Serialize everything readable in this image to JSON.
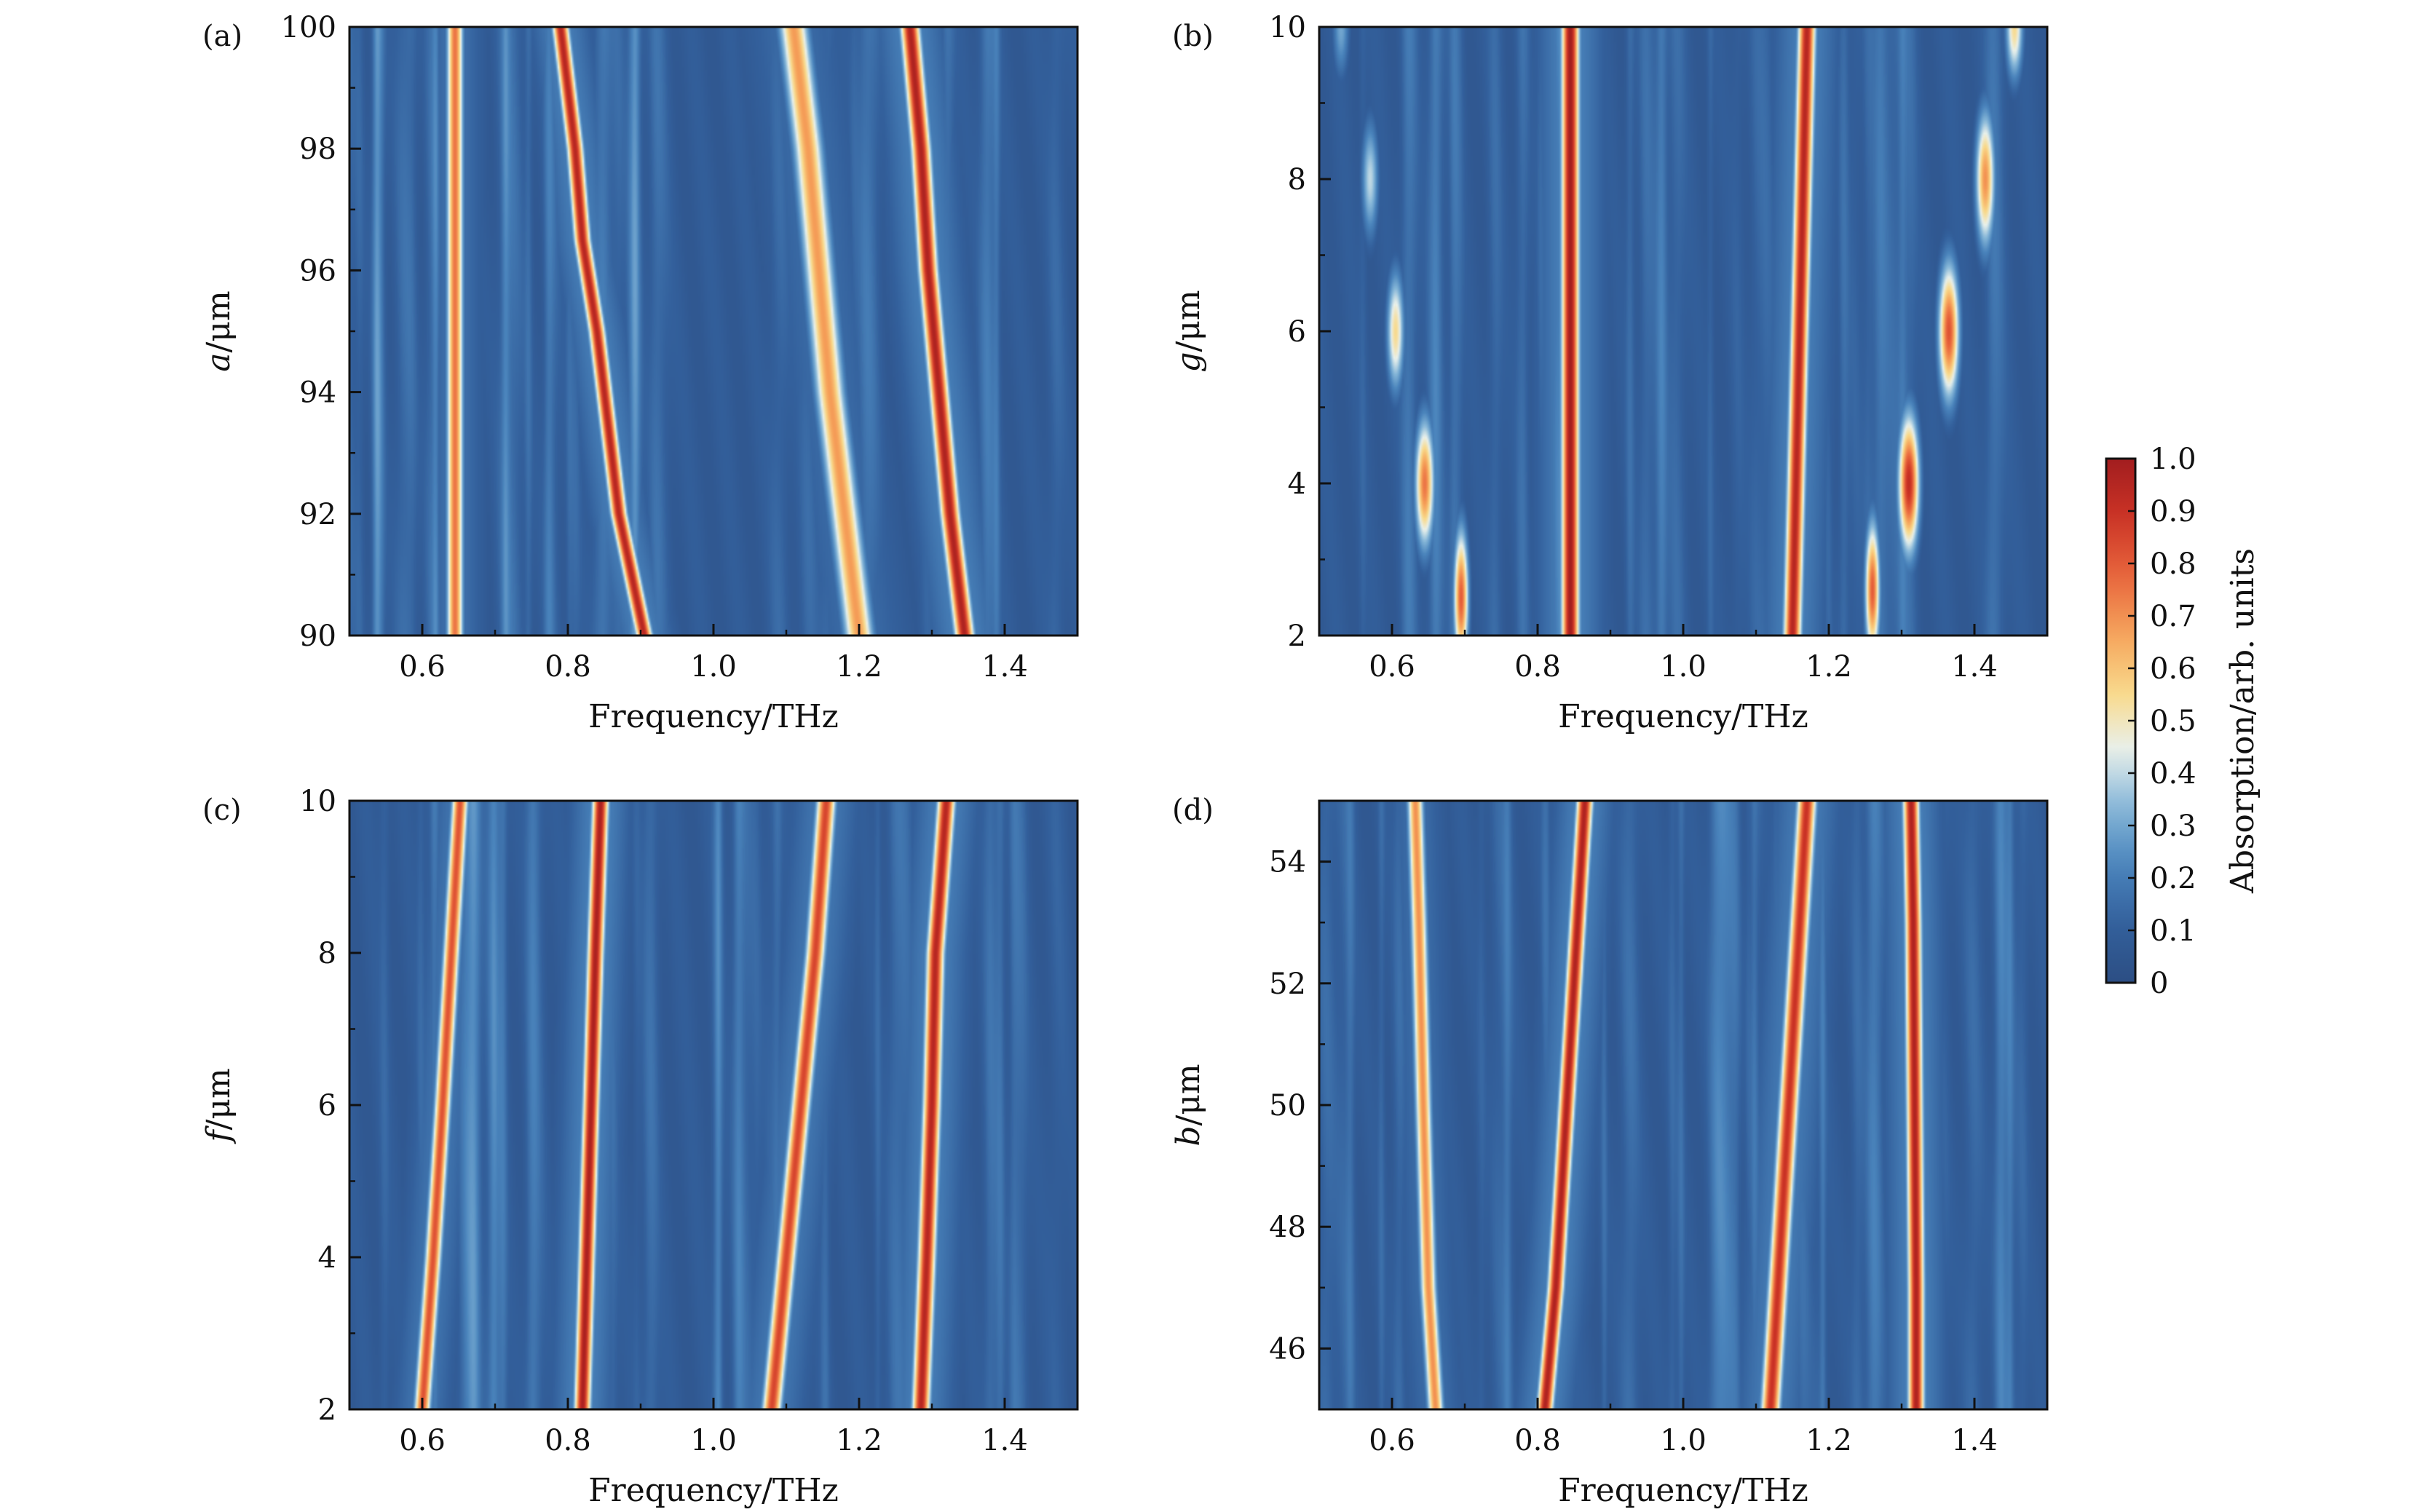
{
  "colors": {
    "colormap": [
      "#2c4e84",
      "#33609c",
      "#4a84bc",
      "#85b6d8",
      "#e9f1ec",
      "#f9d98a",
      "#f6a35b",
      "#e8653d",
      "#cc3426",
      "#a21d1f"
    ],
    "axis": "#111111"
  },
  "colorbar": {
    "label": "Absorption/arb. units",
    "ticks": [
      "0",
      "0.1",
      "0.2",
      "0.3",
      "0.4",
      "0.5",
      "0.6",
      "0.7",
      "0.8",
      "0.9",
      "1.0"
    ],
    "range": [
      0,
      1
    ]
  },
  "chart_data": [
    {
      "type": "heatmap",
      "panel_label": "(a)",
      "xlabel": "Frequency/THz",
      "ylabel_var": "a",
      "ylabel_unit": "/μm",
      "xlim": [
        0.5,
        1.5
      ],
      "ylim": [
        90,
        100
      ],
      "xticks": [
        0.6,
        0.8,
        1.0,
        1.2,
        1.4
      ],
      "xtick_labels": [
        "0.6",
        "0.8",
        "1.0",
        "1.2",
        "1.4"
      ],
      "yticks": [
        90,
        92,
        94,
        96,
        98,
        100
      ],
      "ytick_labels": [
        "90",
        "92",
        "94",
        "96",
        "98",
        "100"
      ],
      "series": [
        {
          "points": [
            [
              0.645,
              90
            ],
            [
              0.645,
              92
            ],
            [
              0.645,
              94
            ],
            [
              0.645,
              96
            ],
            [
              0.645,
              98
            ],
            [
              0.645,
              100
            ]
          ],
          "peak": 0.75,
          "width": 0.011
        },
        {
          "points": [
            [
              0.905,
              90
            ],
            [
              0.87,
              92
            ],
            [
              0.855,
              93.5
            ],
            [
              0.84,
              95
            ],
            [
              0.82,
              96.5
            ],
            [
              0.81,
              98
            ],
            [
              0.79,
              100
            ]
          ],
          "peak": 0.95,
          "width": 0.011
        },
        {
          "points": [
            [
              1.2,
              90
            ],
            [
              1.18,
              92
            ],
            [
              1.16,
              94
            ],
            [
              1.145,
              96
            ],
            [
              1.13,
              98
            ],
            [
              1.11,
              100
            ]
          ],
          "peak": 0.68,
          "width": 0.02
        },
        {
          "points": [
            [
              1.345,
              90
            ],
            [
              1.325,
              92
            ],
            [
              1.31,
              94
            ],
            [
              1.295,
              96
            ],
            [
              1.285,
              98
            ],
            [
              1.27,
              100
            ]
          ],
          "peak": 0.97,
          "width": 0.013
        }
      ]
    },
    {
      "type": "heatmap",
      "panel_label": "(b)",
      "xlabel": "Frequency/THz",
      "ylabel_var": "g",
      "ylabel_unit": "/μm",
      "xlim": [
        0.5,
        1.5
      ],
      "ylim": [
        2,
        10
      ],
      "xticks": [
        0.6,
        0.8,
        1.0,
        1.2,
        1.4
      ],
      "xtick_labels": [
        "0.6",
        "0.8",
        "1.0",
        "1.2",
        "1.4"
      ],
      "yticks": [
        2,
        4,
        6,
        8,
        10
      ],
      "ytick_labels": [
        "2",
        "4",
        "6",
        "8",
        "10"
      ],
      "series": [
        {
          "points": [
            [
              0.845,
              2
            ],
            [
              0.845,
              4
            ],
            [
              0.845,
              6
            ],
            [
              0.845,
              8
            ],
            [
              0.845,
              10
            ]
          ],
          "peak": 1.0,
          "width": 0.012
        },
        {
          "points": [
            [
              1.15,
              2
            ],
            [
              1.155,
              4
            ],
            [
              1.16,
              6
            ],
            [
              1.165,
              8
            ],
            [
              1.17,
              10
            ]
          ],
          "peak": 0.95,
          "width": 0.012
        }
      ],
      "spots": [
        {
          "x": 0.695,
          "y": 2.5,
          "value": 0.8,
          "sx": 0.01,
          "sy": 0.9
        },
        {
          "x": 0.645,
          "y": 4.0,
          "value": 0.75,
          "sx": 0.013,
          "sy": 0.85
        },
        {
          "x": 0.605,
          "y": 6.0,
          "value": 0.55,
          "sx": 0.012,
          "sy": 0.8
        },
        {
          "x": 0.57,
          "y": 8.0,
          "value": 0.4,
          "sx": 0.012,
          "sy": 0.8
        },
        {
          "x": 0.53,
          "y": 10.0,
          "value": 0.3,
          "sx": 0.012,
          "sy": 0.7
        },
        {
          "x": 1.26,
          "y": 2.6,
          "value": 0.8,
          "sx": 0.01,
          "sy": 0.9
        },
        {
          "x": 1.31,
          "y": 4.0,
          "value": 0.92,
          "sx": 0.014,
          "sy": 0.9
        },
        {
          "x": 1.365,
          "y": 6.0,
          "value": 0.82,
          "sx": 0.014,
          "sy": 0.9
        },
        {
          "x": 1.415,
          "y": 8.0,
          "value": 0.7,
          "sx": 0.013,
          "sy": 0.9
        },
        {
          "x": 1.455,
          "y": 10.0,
          "value": 0.55,
          "sx": 0.012,
          "sy": 0.7
        }
      ]
    },
    {
      "type": "heatmap",
      "panel_label": "(c)",
      "xlabel": "Frequency/THz",
      "ylabel_var": "f",
      "ylabel_unit": "/μm",
      "xlim": [
        0.5,
        1.5
      ],
      "ylim": [
        2,
        10
      ],
      "xticks": [
        0.6,
        0.8,
        1.0,
        1.2,
        1.4
      ],
      "xtick_labels": [
        "0.6",
        "0.8",
        "1.0",
        "1.2",
        "1.4"
      ],
      "yticks": [
        2,
        4,
        6,
        8,
        10
      ],
      "ytick_labels": [
        "2",
        "4",
        "6",
        "8",
        "10"
      ],
      "series": [
        {
          "points": [
            [
              0.6,
              2
            ],
            [
              0.615,
              4
            ],
            [
              0.628,
              6
            ],
            [
              0.64,
              8
            ],
            [
              0.652,
              10
            ]
          ],
          "peak": 0.82,
          "width": 0.011
        },
        {
          "points": [
            [
              0.82,
              2
            ],
            [
              0.826,
              4
            ],
            [
              0.832,
              6
            ],
            [
              0.838,
              8
            ],
            [
              0.845,
              10
            ]
          ],
          "peak": 0.98,
          "width": 0.011
        },
        {
          "points": [
            [
              1.08,
              2
            ],
            [
              1.1,
              4
            ],
            [
              1.12,
              6
            ],
            [
              1.14,
              8
            ],
            [
              1.155,
              10
            ]
          ],
          "peak": 0.85,
          "width": 0.013
        },
        {
          "points": [
            [
              1.285,
              2
            ],
            [
              1.293,
              4
            ],
            [
              1.3,
              6
            ],
            [
              1.305,
              8
            ],
            [
              1.32,
              10
            ]
          ],
          "peak": 0.95,
          "width": 0.012
        }
      ]
    },
    {
      "type": "heatmap",
      "panel_label": "(d)",
      "xlabel": "Frequency/THz",
      "ylabel_var": "b",
      "ylabel_unit": "/μm",
      "xlim": [
        0.5,
        1.5
      ],
      "ylim": [
        45,
        55
      ],
      "xticks": [
        0.6,
        0.8,
        1.0,
        1.2,
        1.4
      ],
      "xtick_labels": [
        "0.6",
        "0.8",
        "1.0",
        "1.2",
        "1.4"
      ],
      "yticks": [
        46,
        48,
        50,
        52,
        54
      ],
      "ytick_labels": [
        "46",
        "48",
        "50",
        "52",
        "54"
      ],
      "series": [
        {
          "points": [
            [
              0.66,
              45
            ],
            [
              0.65,
              47
            ],
            [
              0.643,
              50
            ],
            [
              0.637,
              53
            ],
            [
              0.632,
              55
            ]
          ],
          "peak": 0.7,
          "width": 0.011
        },
        {
          "points": [
            [
              0.81,
              45
            ],
            [
              0.825,
              47
            ],
            [
              0.84,
              50
            ],
            [
              0.855,
              53
            ],
            [
              0.865,
              55
            ]
          ],
          "peak": 0.97,
          "width": 0.011
        },
        {
          "points": [
            [
              1.12,
              45
            ],
            [
              1.13,
              47
            ],
            [
              1.145,
              50
            ],
            [
              1.16,
              53
            ],
            [
              1.17,
              55
            ]
          ],
          "peak": 0.9,
          "width": 0.013
        },
        {
          "points": [
            [
              1.32,
              45
            ],
            [
              1.32,
              47
            ],
            [
              1.318,
              50
            ],
            [
              1.316,
              53
            ],
            [
              1.313,
              55
            ]
          ],
          "peak": 0.97,
          "width": 0.011
        }
      ]
    }
  ]
}
